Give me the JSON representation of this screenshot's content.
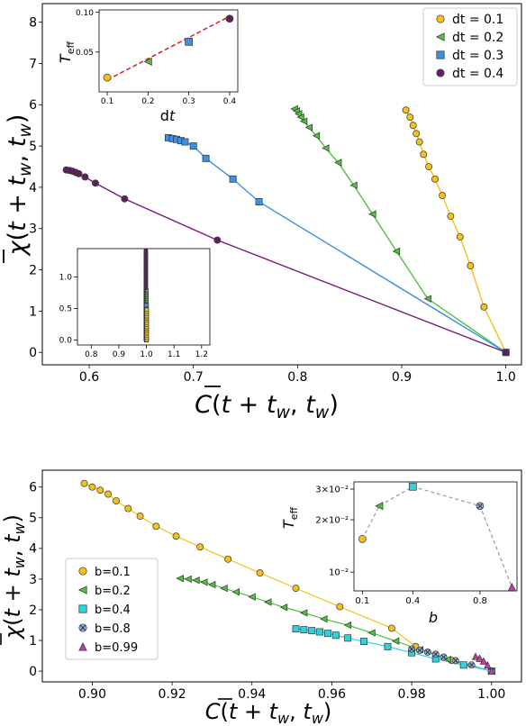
{
  "chart_data": [
    {
      "type": "line",
      "xlabel": "C̅(t + t_w, t_w)",
      "ylabel": "χ̅(t + t_w, t_w)",
      "xlim": [
        0.555,
        1.015
      ],
      "ylim": [
        -0.3,
        8.45
      ],
      "xticks": [
        0.6,
        0.7,
        0.8,
        0.9,
        1.0
      ],
      "xtick_labels": [
        "0.6",
        "0.7",
        "0.8",
        "0.9",
        "1.0"
      ],
      "yticks": [
        0,
        1,
        2,
        3,
        4,
        5,
        6,
        7,
        8
      ],
      "ytick_labels": [
        "0",
        "1",
        "2",
        "3",
        "4",
        "5",
        "6",
        "7",
        "8"
      ],
      "legend": {
        "position": "top-right",
        "labels": [
          "dt = 0.1",
          "dt = 0.2",
          "dt = 0.3",
          "dt = 0.4"
        ]
      },
      "series": [
        {
          "name": "dt = 0.1",
          "color": "#f2c21b",
          "marker": "circle",
          "x": [
            0.904,
            0.908,
            0.911,
            0.914,
            0.917,
            0.921,
            0.926,
            0.932,
            0.939,
            0.947,
            0.956,
            0.966,
            0.979,
            1.0
          ],
          "y": [
            5.87,
            5.7,
            5.5,
            5.3,
            5.1,
            4.8,
            4.5,
            4.2,
            3.8,
            3.3,
            2.8,
            2.1,
            1.1,
            0.0
          ]
        },
        {
          "name": "dt = 0.2",
          "color": "#4fc23f",
          "marker": "triangle-left",
          "x": [
            0.797,
            0.799,
            0.801,
            0.803,
            0.806,
            0.811,
            0.818,
            0.827,
            0.839,
            0.854,
            0.872,
            0.895,
            0.925,
            1.0
          ],
          "y": [
            5.9,
            5.85,
            5.78,
            5.7,
            5.6,
            5.45,
            5.25,
            4.95,
            4.6,
            4.05,
            3.35,
            2.45,
            1.3,
            0.0
          ]
        },
        {
          "name": "dt = 0.3",
          "color": "#3a91e6",
          "marker": "square",
          "x": [
            0.676,
            0.68,
            0.684,
            0.688,
            0.692,
            0.7,
            0.712,
            0.738,
            0.763,
            1.0
          ],
          "y": [
            5.2,
            5.18,
            5.16,
            5.13,
            5.1,
            5.0,
            4.7,
            4.2,
            3.65,
            0.0
          ]
        },
        {
          "name": "dt = 0.4",
          "color": "#7b1a7b",
          "marker": "x-circle",
          "x": [
            0.578,
            0.581,
            0.584,
            0.587,
            0.59,
            0.596,
            0.606,
            0.634,
            0.723,
            1.0
          ],
          "y": [
            4.42,
            4.41,
            4.39,
            4.36,
            4.33,
            4.25,
            4.1,
            3.72,
            2.72,
            0.0
          ]
        }
      ],
      "inset_top": {
        "type": "line",
        "xlabel": "dt",
        "ylabel": "T_eff",
        "xlim": [
          0.08,
          0.42
        ],
        "ylim": [
          0.0,
          0.103
        ],
        "xticks": [
          0.1,
          0.2,
          0.3,
          0.4
        ],
        "xtick_labels": [
          "0.1",
          "0.2",
          "0.3",
          "0.4"
        ],
        "yticks": [
          0.05,
          0.1
        ],
        "ytick_labels": [
          "0.05",
          "0.10"
        ],
        "points": [
          {
            "x": 0.1,
            "y": 0.018,
            "series": "dt = 0.1"
          },
          {
            "x": 0.2,
            "y": 0.038,
            "series": "dt = 0.2"
          },
          {
            "x": 0.3,
            "y": 0.063,
            "series": "dt = 0.3"
          },
          {
            "x": 0.4,
            "y": 0.092,
            "series": "dt = 0.4"
          }
        ],
        "fit": {
          "x": [
            0.1,
            0.4
          ],
          "y": [
            0.015,
            0.095
          ],
          "color": "#e01b1b",
          "style": "dashed"
        }
      },
      "inset_bottom": {
        "type": "scatter",
        "xlim": [
          0.75,
          1.23
        ],
        "ylim": [
          -0.08,
          1.45
        ],
        "xticks": [
          0.8,
          0.9,
          1.0,
          1.1,
          1.2
        ],
        "xtick_labels": [
          "0.8",
          "0.9",
          "1.0",
          "1.1",
          "1.2"
        ],
        "yticks": [
          0.0,
          0.5,
          1.0
        ],
        "ytick_labels": [
          "0.0",
          "0.5",
          "1.0"
        ],
        "series": [
          {
            "name": "dt = 0.4",
            "x": 0.998,
            "y_from": 0.0,
            "y_to": 1.42
          },
          {
            "name": "dt = 0.2",
            "x": 0.999,
            "y_from": 0.0,
            "y_to": 0.78
          },
          {
            "name": "dt = 0.3",
            "x": 1.0,
            "y_from": 0.0,
            "y_to": 0.55
          },
          {
            "name": "dt = 0.1",
            "x": 1.001,
            "y_from": 0.0,
            "y_to": 0.48
          }
        ]
      }
    },
    {
      "type": "line",
      "xlabel": "C̅(t + t_w, t_w)",
      "ylabel": "χ̅(t + t_w, t_w)",
      "xlim": [
        0.8875,
        1.0075
      ],
      "ylim": [
        -0.35,
        6.55
      ],
      "xticks": [
        0.9,
        0.92,
        0.94,
        0.96,
        0.98,
        1.0
      ],
      "xtick_labels": [
        "0.90",
        "0.92",
        "0.94",
        "0.96",
        "0.98",
        "1.00"
      ],
      "yticks": [
        0,
        1,
        2,
        3,
        4,
        5,
        6
      ],
      "ytick_labels": [
        "0",
        "1",
        "2",
        "3",
        "4",
        "5",
        "6"
      ],
      "legend": {
        "position": "left",
        "labels": [
          "b=0.1",
          "b=0.2",
          "b=0.4",
          "b=0.8",
          "b=0.99"
        ]
      },
      "series": [
        {
          "name": "b=0.1",
          "color": "#f2c21b",
          "marker": "circle",
          "x": [
            0.898,
            0.9,
            0.902,
            0.904,
            0.906,
            0.909,
            0.912,
            0.916,
            0.921,
            0.927,
            0.934,
            0.942,
            0.951,
            0.962,
            0.975,
            0.981,
            0.99,
            1.0
          ],
          "y": [
            6.12,
            6.0,
            5.9,
            5.77,
            5.55,
            5.3,
            5.05,
            4.72,
            4.4,
            4.05,
            3.65,
            3.2,
            2.7,
            2.1,
            1.4,
            0.8,
            0.35,
            0.0
          ]
        },
        {
          "name": "b=0.2",
          "color": "#4fc23f",
          "marker": "triangle-left",
          "x": [
            0.922,
            0.924,
            0.926,
            0.928,
            0.93,
            0.933,
            0.936,
            0.94,
            0.944,
            0.948,
            0.953,
            0.958,
            0.964,
            0.97,
            0.976,
            0.982,
            0.989,
            1.0
          ],
          "y": [
            3.02,
            3.0,
            2.96,
            2.9,
            2.82,
            2.7,
            2.58,
            2.42,
            2.25,
            2.08,
            1.9,
            1.7,
            1.5,
            1.25,
            0.98,
            0.7,
            0.38,
            0.0
          ]
        },
        {
          "name": "b=0.4",
          "color": "#2ed3dd",
          "marker": "square",
          "x": [
            0.951,
            0.953,
            0.955,
            0.957,
            0.959,
            0.961,
            0.964,
            0.968,
            0.974,
            0.98,
            0.986,
            0.993,
            1.0
          ],
          "y": [
            1.38,
            1.35,
            1.32,
            1.28,
            1.23,
            1.17,
            1.08,
            0.97,
            0.8,
            0.6,
            0.4,
            0.2,
            0.0
          ]
        },
        {
          "name": "b=0.8",
          "color": "#8fb1e6",
          "marker": "x-circle",
          "x": [
            0.98,
            0.982,
            0.984,
            0.986,
            0.988,
            0.991,
            0.995,
            1.0
          ],
          "y": [
            0.72,
            0.68,
            0.62,
            0.55,
            0.46,
            0.34,
            0.2,
            0.0
          ]
        },
        {
          "name": "b=0.99",
          "color": "#c43ea8",
          "marker": "triangle-up",
          "x": [
            0.996,
            0.997,
            0.998,
            0.999,
            1.0
          ],
          "y": [
            0.48,
            0.42,
            0.33,
            0.2,
            0.0
          ]
        }
      ],
      "inset": {
        "type": "line",
        "xlabel": "b",
        "ylabel": "T_eff",
        "log_y": true,
        "xlim": [
          0.05,
          1.02
        ],
        "ylim": [
          0.0078,
          0.033
        ],
        "xticks": [
          0.1,
          0.4,
          0.8
        ],
        "xtick_labels": [
          "0.1",
          "0.4",
          "0.8"
        ],
        "yticks": [
          0.01,
          0.02,
          0.03
        ],
        "ytick_labels": [
          "10⁻²",
          "2×10⁻²",
          "3×10⁻²"
        ],
        "points": [
          {
            "x": 0.1,
            "y": 0.0155,
            "series": "b=0.1"
          },
          {
            "x": 0.2,
            "y": 0.024,
            "series": "b=0.2"
          },
          {
            "x": 0.4,
            "y": 0.031,
            "series": "b=0.4"
          },
          {
            "x": 0.8,
            "y": 0.024,
            "series": "b=0.8"
          },
          {
            "x": 0.99,
            "y": 0.0082,
            "series": "b=0.99"
          }
        ],
        "line_color": "#9a9a9a",
        "line_style": "dashed"
      }
    }
  ]
}
